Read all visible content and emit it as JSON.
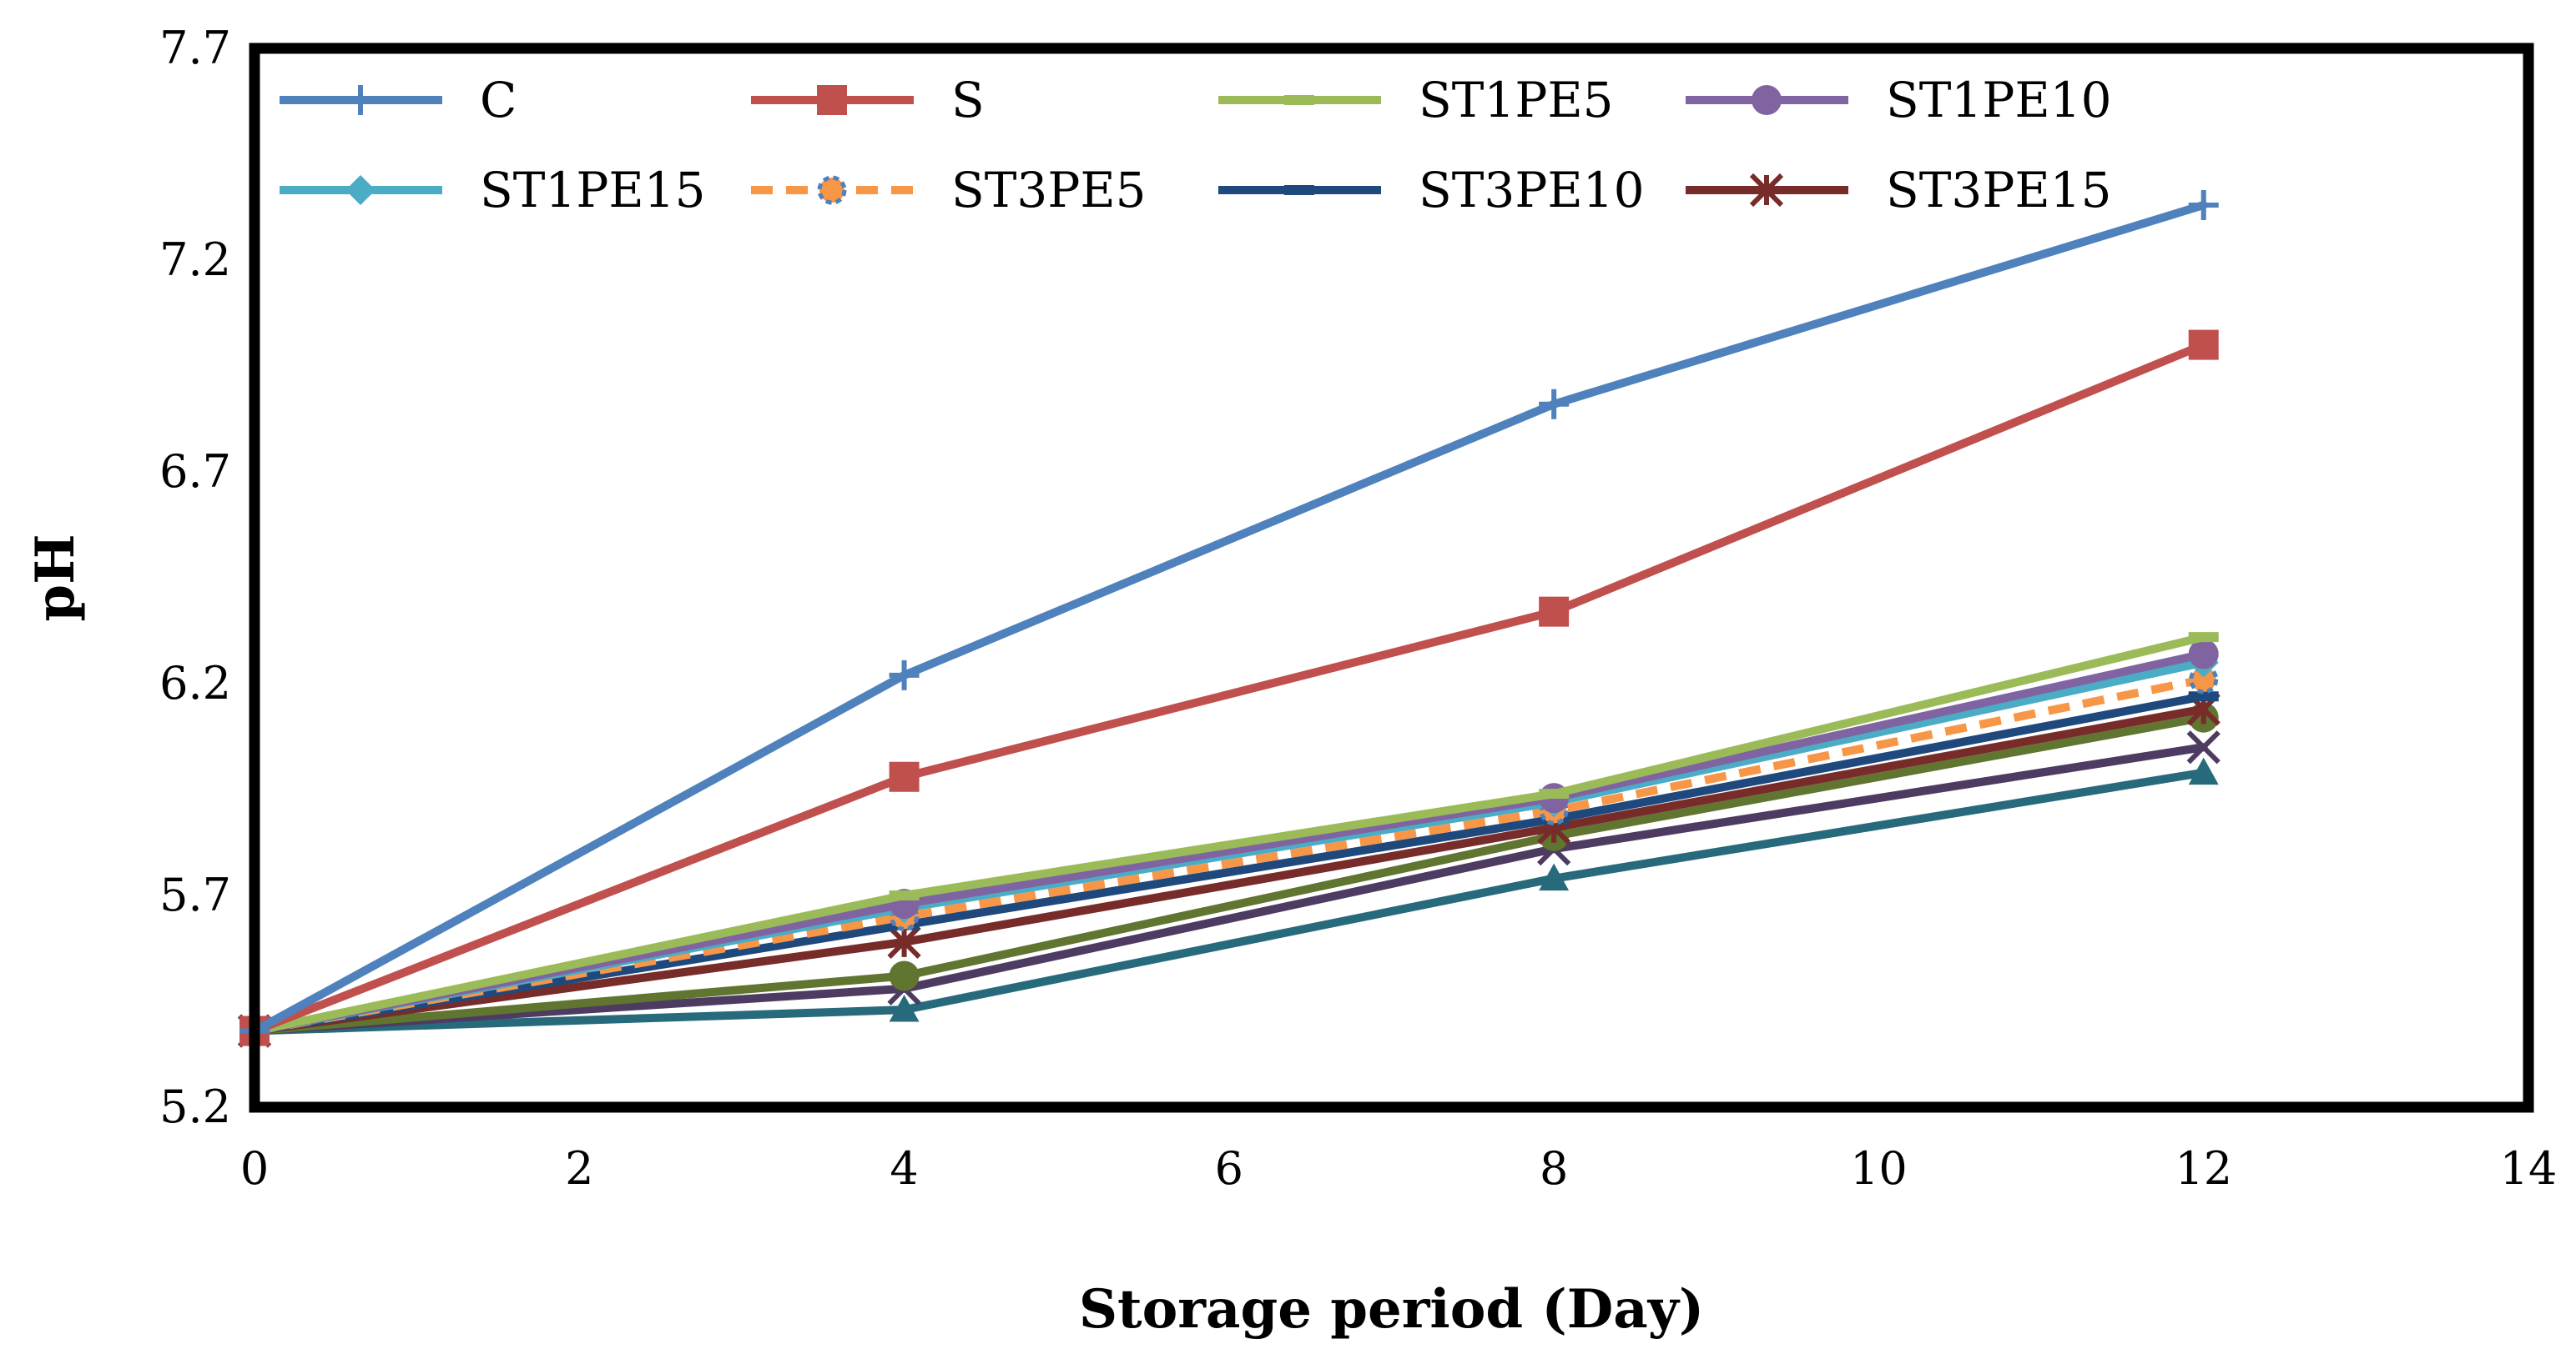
{
  "chart_data": {
    "type": "line",
    "title": "",
    "xlabel": "Storage period (Day)",
    "ylabel": "pH",
    "xlim": [
      0,
      14
    ],
    "ylim": [
      5.2,
      7.7
    ],
    "xticks": [
      0,
      2,
      4,
      6,
      8,
      10,
      12,
      14
    ],
    "yticks": [
      5.2,
      5.7,
      6.2,
      6.7,
      7.2,
      7.7
    ],
    "xtick_labels": [
      "0",
      "2",
      "4",
      "6",
      "8",
      "10",
      "12",
      "14"
    ],
    "ytick_labels": [
      "5.2",
      "5.7",
      "6.2",
      "6.7",
      "7.2",
      "7.7"
    ],
    "grid": false,
    "legend_position": "top",
    "x": [
      0,
      4,
      8,
      12
    ],
    "series": [
      {
        "name": "C",
        "values": [
          5.38,
          6.22,
          6.86,
          7.33
        ],
        "color": "#4F81BD",
        "marker": "plus",
        "dash": "",
        "legend": true
      },
      {
        "name": "S",
        "values": [
          5.38,
          5.98,
          6.37,
          7.0
        ],
        "color": "#C0504D",
        "marker": "square",
        "dash": "",
        "legend": true
      },
      {
        "name": "ST1PE5",
        "values": [
          5.38,
          5.7,
          5.94,
          6.31
        ],
        "color": "#9BBB59",
        "marker": "dash",
        "dash": "",
        "legend": true
      },
      {
        "name": "ST1PE10",
        "values": [
          5.38,
          5.68,
          5.93,
          6.27
        ],
        "color": "#8064A2",
        "marker": "circle",
        "dash": "",
        "legend": true
      },
      {
        "name": "ST1PE15",
        "values": [
          5.38,
          5.67,
          5.92,
          6.25
        ],
        "color": "#4BACC6",
        "marker": "diamond",
        "dash": "",
        "legend": true
      },
      {
        "name": "ST3PE5",
        "values": [
          5.38,
          5.65,
          5.9,
          6.21
        ],
        "color": "#F79646",
        "marker": "circle-dashed",
        "dash": "26 16",
        "legend": true
      },
      {
        "name": "ST3PE10",
        "values": [
          5.38,
          5.63,
          5.88,
          6.17
        ],
        "color": "#1F497D",
        "marker": "dash",
        "dash": "",
        "legend": true
      },
      {
        "name": "ST3PE15",
        "values": [
          5.38,
          5.59,
          5.86,
          6.14
        ],
        "color": "#772C2A",
        "marker": "star",
        "dash": "",
        "legend": true
      },
      {
        "name": "",
        "values": [
          5.38,
          5.51,
          5.84,
          6.12
        ],
        "color": "#5F7530",
        "marker": "circle",
        "dash": "",
        "legend": false
      },
      {
        "name": "",
        "values": [
          5.38,
          5.48,
          5.81,
          6.05
        ],
        "color": "#4D3B62",
        "marker": "x",
        "dash": "",
        "legend": false
      },
      {
        "name": "",
        "values": [
          5.38,
          5.43,
          5.74,
          5.99
        ],
        "color": "#276A7C",
        "marker": "triangle",
        "dash": "",
        "legend": false
      }
    ]
  }
}
